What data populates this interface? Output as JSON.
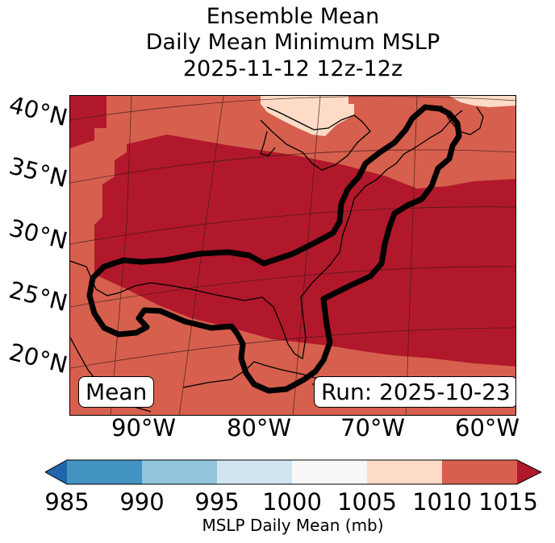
{
  "title": {
    "line1": "Ensemble Mean",
    "line2": "Daily Mean Minimum MSLP",
    "line3": "2025-11-12 12z-12z"
  },
  "map": {
    "lat_labels": [
      "40°N",
      "35°N",
      "30°N",
      "25°N",
      "20°N"
    ],
    "lon_labels": [
      "90°W",
      "80°W",
      "70°W",
      "60°W"
    ],
    "left_badge": "Mean",
    "right_badge": "Run: 2025-10-23",
    "fill_colors": {
      "1005-1010": "#fddbc7",
      "1010-1015": "#d6604d",
      "above-1015": "#b2182b"
    },
    "contour_color": "#000000"
  },
  "colorbar": {
    "label": "MSLP Daily Mean (mb)",
    "ticks": [
      "985",
      "990",
      "995",
      "1000",
      "1005",
      "1010",
      "1015"
    ],
    "colors": [
      "#2166ac",
      "#4393c3",
      "#92c5de",
      "#d1e5f0",
      "#f7f7f7",
      "#fddbc7",
      "#d6604d",
      "#b2182b"
    ]
  }
}
